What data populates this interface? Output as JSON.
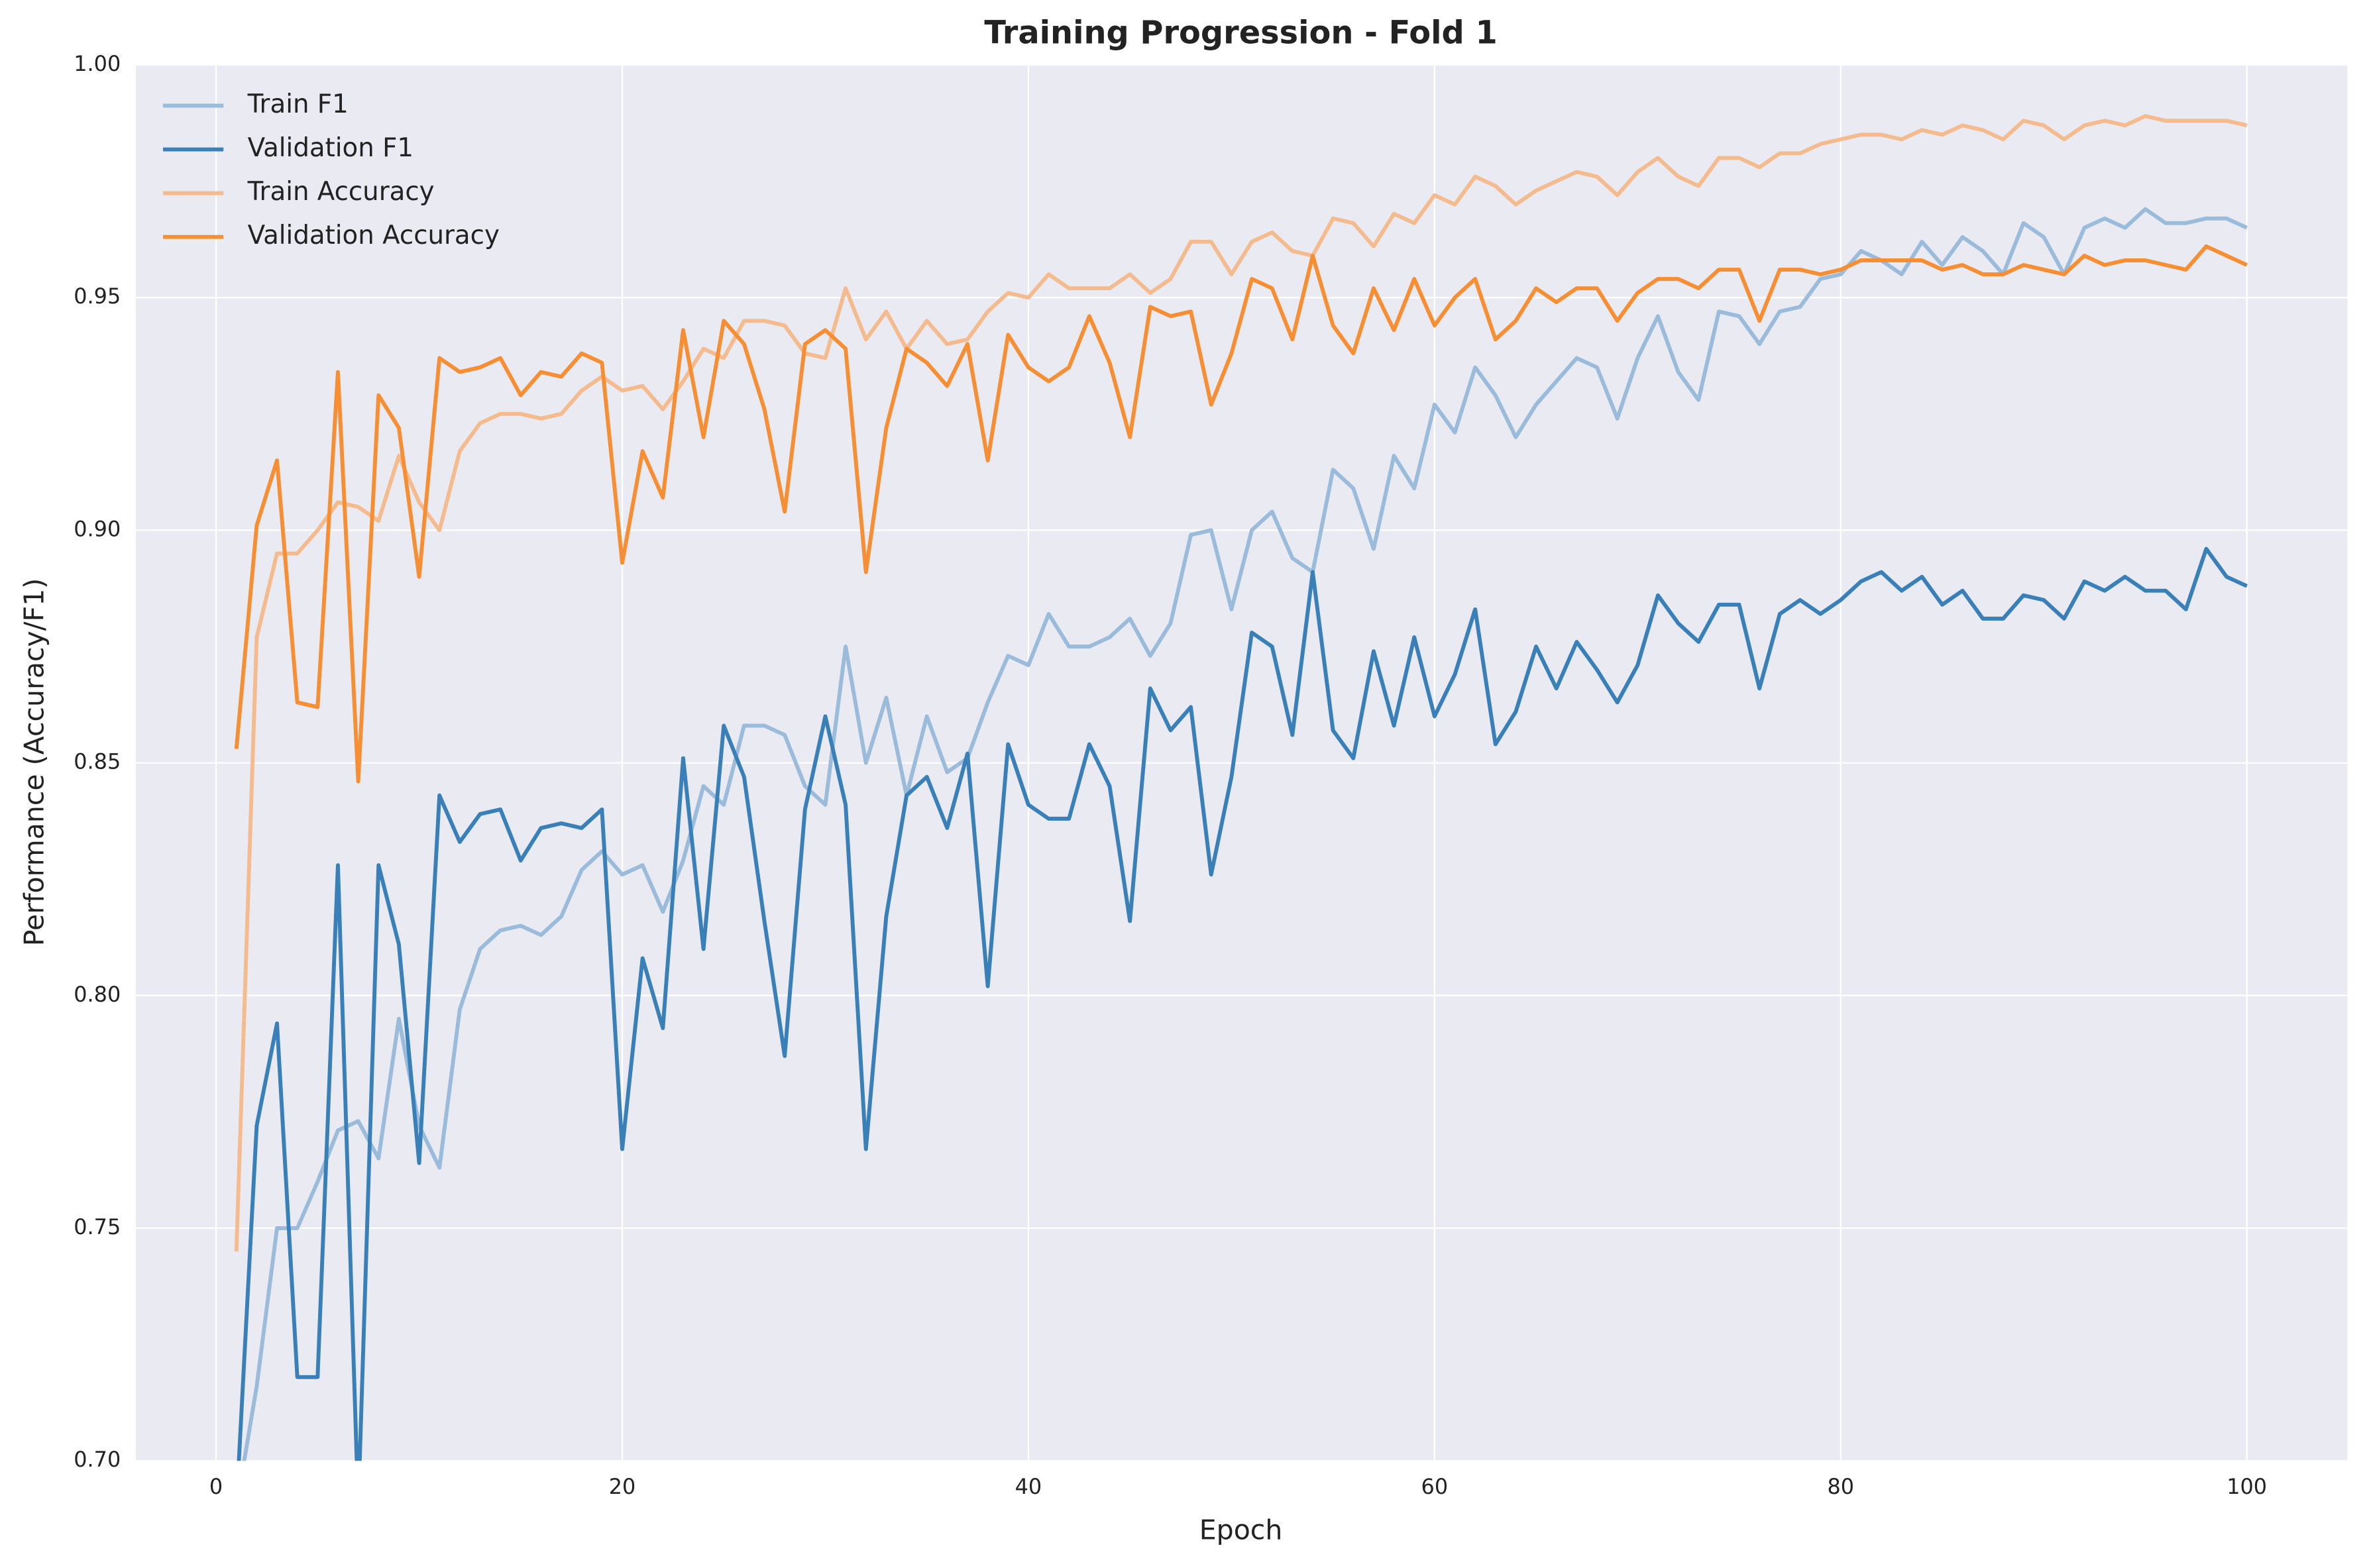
{
  "chart_data": {
    "type": "line",
    "title": "Training Progression - Fold 1",
    "x_label": "Epoch",
    "y_label": "Performance (Accuracy/F1)",
    "x": [
      1,
      2,
      3,
      4,
      5,
      6,
      7,
      8,
      9,
      10,
      11,
      12,
      13,
      14,
      15,
      16,
      17,
      18,
      19,
      20,
      21,
      22,
      23,
      24,
      25,
      26,
      27,
      28,
      29,
      30,
      31,
      32,
      33,
      34,
      35,
      36,
      37,
      38,
      39,
      40,
      41,
      42,
      43,
      44,
      45,
      46,
      47,
      48,
      49,
      50,
      51,
      52,
      53,
      54,
      55,
      56,
      57,
      58,
      59,
      60,
      61,
      62,
      63,
      64,
      65,
      66,
      67,
      68,
      69,
      70,
      71,
      72,
      73,
      74,
      75,
      76,
      77,
      78,
      79,
      80,
      81,
      82,
      83,
      84,
      85,
      86,
      87,
      88,
      89,
      90,
      91,
      92,
      93,
      94,
      95,
      96,
      97,
      98,
      99,
      100
    ],
    "xlim": [
      -3.95,
      104.95
    ],
    "xticks": [
      0,
      20,
      40,
      60,
      80,
      100
    ],
    "ylim": [
      0.7,
      1.0
    ],
    "yticks": [
      {
        "value": 0.7,
        "label": "0.70"
      },
      0.75,
      {
        "value": 0.8,
        "label": "0.80"
      },
      0.85,
      {
        "value": 0.9,
        "label": "0.90"
      },
      0.95,
      {
        "value": 1.0,
        "label": "1.00"
      }
    ],
    "grid": true,
    "legend_position": "upper-left",
    "series": [
      {
        "name": "Train F1",
        "color": "#9bbbda",
        "values": [
          0.69,
          0.716,
          0.75,
          0.75,
          0.76,
          0.771,
          0.773,
          0.765,
          0.795,
          0.772,
          0.763,
          0.797,
          0.81,
          0.814,
          0.815,
          0.813,
          0.817,
          0.827,
          0.831,
          0.826,
          0.828,
          0.818,
          0.829,
          0.845,
          0.841,
          0.858,
          0.858,
          0.856,
          0.845,
          0.841,
          0.875,
          0.85,
          0.864,
          0.843,
          0.86,
          0.848,
          0.851,
          0.863,
          0.873,
          0.871,
          0.882,
          0.875,
          0.875,
          0.877,
          0.881,
          0.873,
          0.88,
          0.899,
          0.9,
          0.883,
          0.9,
          0.904,
          0.894,
          0.891,
          0.913,
          0.909,
          0.896,
          0.916,
          0.909,
          0.927,
          0.921,
          0.935,
          0.929,
          0.92,
          0.927,
          0.932,
          0.937,
          0.935,
          0.924,
          0.937,
          0.946,
          0.934,
          0.928,
          0.947,
          0.946,
          0.94,
          0.947,
          0.948,
          0.954,
          0.955,
          0.96,
          0.958,
          0.955,
          0.962,
          0.957,
          0.963,
          0.96,
          0.955,
          0.966,
          0.963,
          0.955,
          0.965,
          0.967,
          0.965,
          0.969,
          0.966,
          0.966,
          0.967,
          0.967,
          0.965
        ]
      },
      {
        "name": "Validation F1",
        "color": "#3a80b8",
        "values": [
          0.69,
          0.772,
          0.794,
          0.718,
          0.718,
          0.828,
          0.69,
          0.828,
          0.811,
          0.764,
          0.843,
          0.833,
          0.839,
          0.84,
          0.829,
          0.836,
          0.837,
          0.836,
          0.84,
          0.767,
          0.808,
          0.793,
          0.851,
          0.81,
          0.858,
          0.847,
          0.816,
          0.787,
          0.84,
          0.86,
          0.841,
          0.767,
          0.817,
          0.843,
          0.847,
          0.836,
          0.852,
          0.802,
          0.854,
          0.841,
          0.838,
          0.838,
          0.854,
          0.845,
          0.816,
          0.866,
          0.857,
          0.862,
          0.826,
          0.847,
          0.878,
          0.875,
          0.856,
          0.891,
          0.857,
          0.851,
          0.874,
          0.858,
          0.877,
          0.86,
          0.869,
          0.883,
          0.854,
          0.861,
          0.875,
          0.866,
          0.876,
          0.87,
          0.863,
          0.871,
          0.886,
          0.88,
          0.876,
          0.884,
          0.884,
          0.866,
          0.882,
          0.885,
          0.882,
          0.885,
          0.889,
          0.891,
          0.887,
          0.89,
          0.884,
          0.887,
          0.881,
          0.881,
          0.886,
          0.885,
          0.881,
          0.889,
          0.887,
          0.89,
          0.887,
          0.887,
          0.883,
          0.896,
          0.89,
          0.888
        ]
      },
      {
        "name": "Train Accuracy",
        "color": "#f4bb8e",
        "values": [
          0.745,
          0.877,
          0.895,
          0.895,
          0.9,
          0.906,
          0.905,
          0.902,
          0.916,
          0.906,
          0.9,
          0.917,
          0.923,
          0.925,
          0.925,
          0.924,
          0.925,
          0.93,
          0.933,
          0.93,
          0.931,
          0.926,
          0.932,
          0.939,
          0.937,
          0.945,
          0.945,
          0.944,
          0.938,
          0.937,
          0.952,
          0.941,
          0.947,
          0.939,
          0.945,
          0.94,
          0.941,
          0.947,
          0.951,
          0.95,
          0.955,
          0.952,
          0.952,
          0.952,
          0.955,
          0.951,
          0.954,
          0.962,
          0.962,
          0.955,
          0.962,
          0.964,
          0.96,
          0.959,
          0.967,
          0.966,
          0.961,
          0.968,
          0.966,
          0.972,
          0.97,
          0.976,
          0.974,
          0.97,
          0.973,
          0.975,
          0.977,
          0.976,
          0.972,
          0.977,
          0.98,
          0.976,
          0.974,
          0.98,
          0.98,
          0.978,
          0.981,
          0.981,
          0.983,
          0.984,
          0.985,
          0.985,
          0.984,
          0.986,
          0.985,
          0.987,
          0.986,
          0.984,
          0.988,
          0.987,
          0.984,
          0.987,
          0.988,
          0.987,
          0.989,
          0.988,
          0.988,
          0.988,
          0.988,
          0.987
        ]
      },
      {
        "name": "Validation Accuracy",
        "color": "#f68e33",
        "values": [
          0.853,
          0.901,
          0.915,
          0.863,
          0.862,
          0.934,
          0.846,
          0.929,
          0.922,
          0.89,
          0.937,
          0.934,
          0.935,
          0.937,
          0.929,
          0.934,
          0.933,
          0.938,
          0.936,
          0.893,
          0.917,
          0.907,
          0.943,
          0.92,
          0.945,
          0.94,
          0.926,
          0.904,
          0.94,
          0.943,
          0.939,
          0.891,
          0.922,
          0.939,
          0.936,
          0.931,
          0.94,
          0.915,
          0.942,
          0.935,
          0.932,
          0.935,
          0.946,
          0.936,
          0.92,
          0.948,
          0.946,
          0.947,
          0.927,
          0.938,
          0.954,
          0.952,
          0.941,
          0.959,
          0.944,
          0.938,
          0.952,
          0.943,
          0.954,
          0.944,
          0.95,
          0.954,
          0.941,
          0.945,
          0.952,
          0.949,
          0.952,
          0.952,
          0.945,
          0.951,
          0.954,
          0.954,
          0.952,
          0.956,
          0.956,
          0.945,
          0.956,
          0.956,
          0.955,
          0.956,
          0.958,
          0.958,
          0.958,
          0.958,
          0.956,
          0.957,
          0.955,
          0.955,
          0.957,
          0.956,
          0.955,
          0.959,
          0.957,
          0.958,
          0.958,
          0.957,
          0.956,
          0.961,
          0.959,
          0.957
        ]
      }
    ]
  }
}
